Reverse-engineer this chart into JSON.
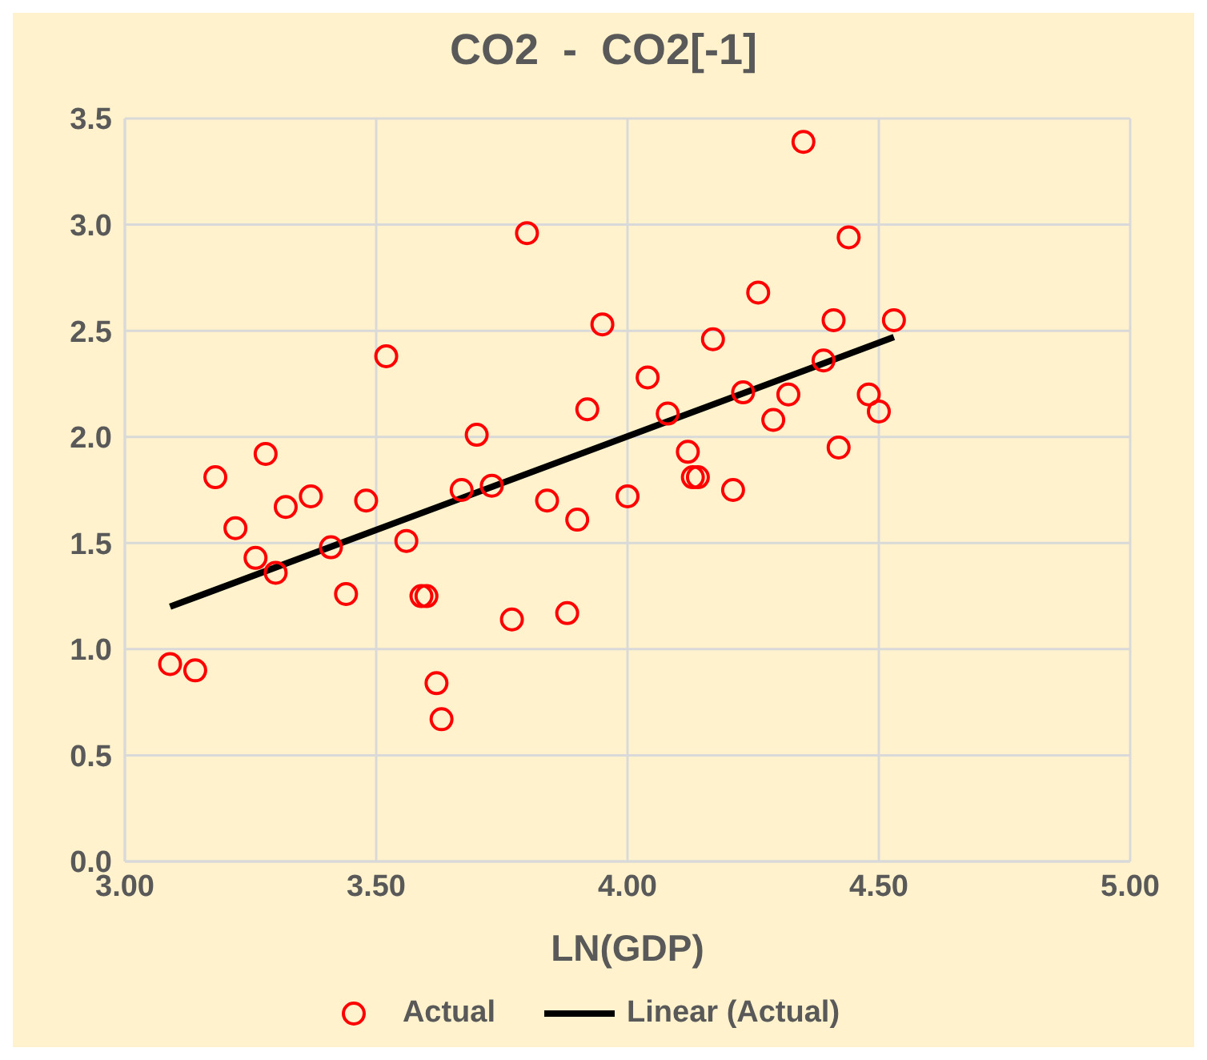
{
  "chart_data": {
    "type": "scatter",
    "title": "CO2  -  CO2[-1]",
    "xlabel": "LN(GDP)",
    "xlim": [
      3,
      5
    ],
    "xticks": [
      {
        "value": 3,
        "label": "3.00"
      },
      {
        "value": 3.5,
        "label": "3.50"
      },
      {
        "value": 4,
        "label": "4.00"
      },
      {
        "value": 4.5,
        "label": "4.50"
      },
      {
        "value": 5,
        "label": "5.00"
      }
    ],
    "ylim": [
      0,
      3.5
    ],
    "yticks": [
      {
        "value": 0,
        "label": "0.0"
      },
      {
        "value": 0.5,
        "label": "0.5"
      },
      {
        "value": 1,
        "label": "1.0"
      },
      {
        "value": 1.5,
        "label": "1.5"
      },
      {
        "value": 2,
        "label": "2.0"
      },
      {
        "value": 2.5,
        "label": "2.5"
      },
      {
        "value": 3,
        "label": "3.0"
      },
      {
        "value": 3.5,
        "label": "3.5"
      }
    ],
    "grid": true,
    "legend": "bottom",
    "series": [
      {
        "name": "Actual",
        "marker": "circle",
        "color": "#ff0000",
        "x": [
          3.09,
          3.14,
          3.18,
          3.22,
          3.26,
          3.28,
          3.3,
          3.32,
          3.37,
          3.41,
          3.44,
          3.48,
          3.52,
          3.56,
          3.59,
          3.6,
          3.62,
          3.63,
          3.67,
          3.7,
          3.73,
          3.77,
          3.8,
          3.84,
          3.88,
          3.9,
          3.92,
          3.95,
          4.0,
          4.04,
          4.08,
          4.12,
          4.13,
          4.14,
          4.17,
          4.21,
          4.23,
          4.26,
          4.29,
          4.32,
          4.35,
          4.39,
          4.41,
          4.42,
          4.44,
          4.48,
          4.5,
          4.53
        ],
        "values": [
          0.93,
          0.9,
          1.81,
          1.57,
          1.43,
          1.92,
          1.36,
          1.67,
          1.72,
          1.48,
          1.26,
          1.7,
          2.38,
          1.51,
          1.25,
          1.25,
          0.84,
          0.67,
          1.75,
          2.01,
          1.77,
          1.14,
          2.96,
          1.7,
          1.17,
          1.61,
          2.13,
          2.53,
          1.72,
          2.28,
          2.11,
          1.93,
          1.81,
          1.81,
          2.46,
          1.75,
          2.21,
          2.68,
          2.08,
          2.2,
          3.39,
          2.36,
          2.55,
          1.95,
          2.94,
          2.2,
          2.12,
          2.55
        ]
      },
      {
        "name": "Linear (Actual)",
        "type": "line",
        "marker": "none",
        "line_style": "solid",
        "color": "#000000",
        "x": [
          3.09,
          4.53
        ],
        "values": [
          1.2,
          2.47
        ]
      }
    ]
  }
}
